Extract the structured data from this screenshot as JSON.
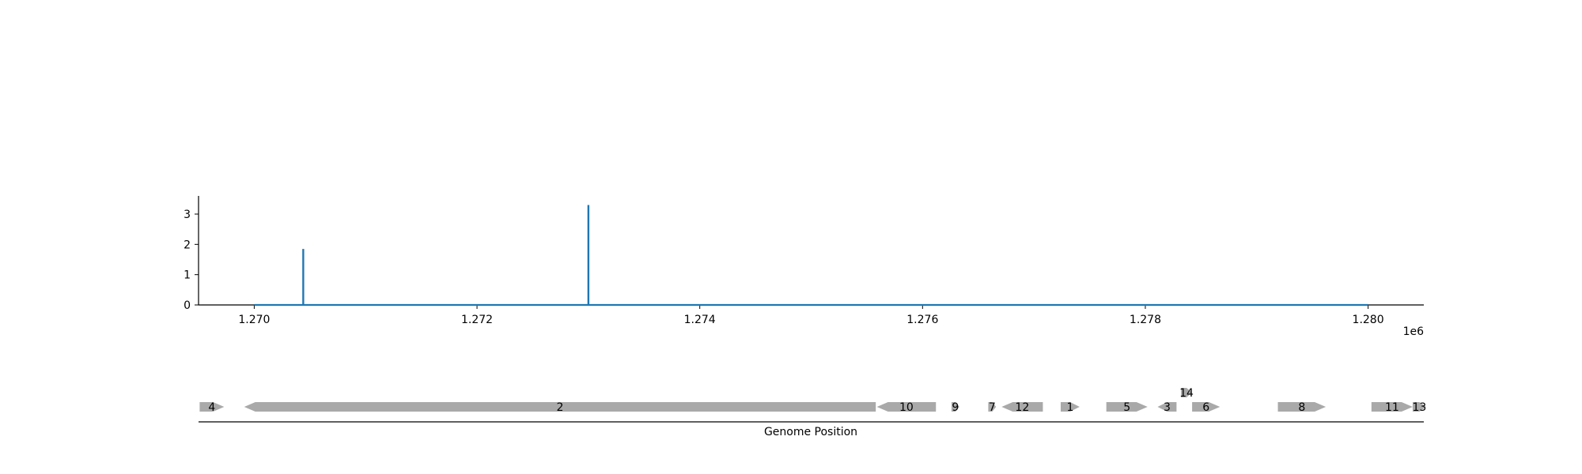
{
  "chart_data": [
    {
      "type": "line",
      "title": "",
      "xlabel": "",
      "ylabel": "",
      "x_offset_label": "1e6",
      "xlim": [
        1269500,
        1280500
      ],
      "ylim": [
        0,
        3.6
      ],
      "x_ticks": [
        1270000,
        1272000,
        1274000,
        1276000,
        1278000,
        1280000
      ],
      "x_tick_labels": [
        "1.270",
        "1.272",
        "1.274",
        "1.276",
        "1.278",
        "1.280"
      ],
      "y_ticks": [
        0,
        1,
        2,
        3
      ],
      "y_tick_labels": [
        "0",
        "1",
        "2",
        "3"
      ],
      "grid": false,
      "series": [
        {
          "color": "#1f77b4",
          "baseline_range": [
            1270000,
            1280000
          ],
          "spikes": [
            {
              "x": 1270440,
              "y": 1.85
            },
            {
              "x": 1273000,
              "y": 3.3
            }
          ]
        }
      ]
    },
    {
      "type": "gene-track",
      "xlabel": "Genome Position",
      "color": "#a9a9a9",
      "genes": [
        {
          "label": "4",
          "start": 1269510,
          "end": 1269730,
          "strand": "+",
          "row": 0
        },
        {
          "label": "2",
          "start": 1269910,
          "end": 1275580,
          "strand": "-",
          "row": 0
        },
        {
          "label": "10",
          "start": 1275590,
          "end": 1276120,
          "strand": "-",
          "row": 0
        },
        {
          "label": "9",
          "start": 1276260,
          "end": 1276330,
          "strand": "+",
          "row": 0
        },
        {
          "label": "7",
          "start": 1276590,
          "end": 1276660,
          "strand": "+",
          "row": 0
        },
        {
          "label": "12",
          "start": 1276710,
          "end": 1277080,
          "strand": "-",
          "row": 0
        },
        {
          "label": "1",
          "start": 1277240,
          "end": 1277410,
          "strand": "+",
          "row": 0
        },
        {
          "label": "5",
          "start": 1277650,
          "end": 1278020,
          "strand": "+",
          "row": 0
        },
        {
          "label": "3",
          "start": 1278110,
          "end": 1278280,
          "strand": "-",
          "row": 0
        },
        {
          "label": "14",
          "start": 1278320,
          "end": 1278420,
          "strand": "+",
          "row": 1
        },
        {
          "label": "6",
          "start": 1278420,
          "end": 1278670,
          "strand": "+",
          "row": 0
        },
        {
          "label": "8",
          "start": 1279190,
          "end": 1279620,
          "strand": "+",
          "row": 0
        },
        {
          "label": "11",
          "start": 1280030,
          "end": 1280400,
          "strand": "+",
          "row": 0
        },
        {
          "label": "13",
          "start": 1280400,
          "end": 1280520,
          "strand": "+",
          "row": 0
        }
      ]
    }
  ]
}
